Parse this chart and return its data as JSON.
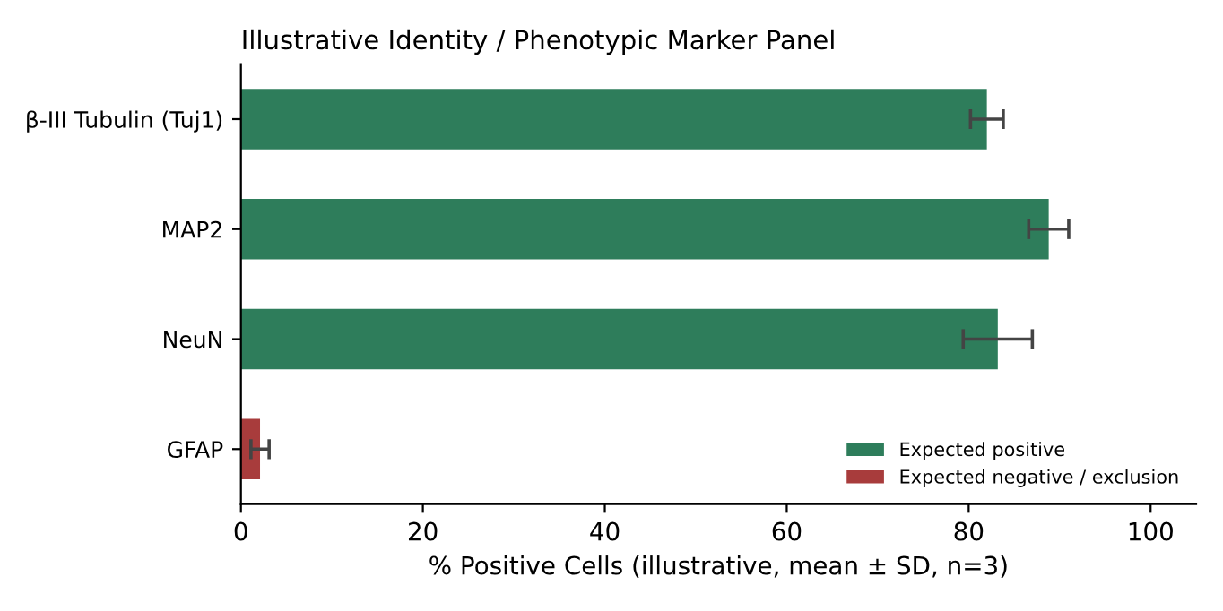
{
  "chart_data": {
    "type": "bar",
    "orientation": "horizontal",
    "title": "Illustrative Identity / Phenotypic Marker Panel",
    "xlabel": "% Positive Cells (illustrative, mean ± SD, n=3)",
    "categories": [
      "β-III Tubulin (Tuj1)",
      "MAP2",
      "NeuN",
      "GFAP"
    ],
    "series": [
      {
        "name": "Expected positive",
        "color": "#2e7d5b",
        "values": [
          82,
          88.8,
          83.2,
          null
        ],
        "errors": [
          1.8,
          2.2,
          3.8,
          null
        ]
      },
      {
        "name": "Expected negative / exclusion",
        "color": "#a83c3c",
        "values": [
          null,
          null,
          null,
          2.1
        ],
        "errors": [
          null,
          null,
          null,
          1.0
        ]
      }
    ],
    "xlim": [
      0,
      105
    ],
    "xticks": [
      0,
      20,
      40,
      60,
      80,
      100
    ],
    "grid": false,
    "legend": "bottom right"
  }
}
